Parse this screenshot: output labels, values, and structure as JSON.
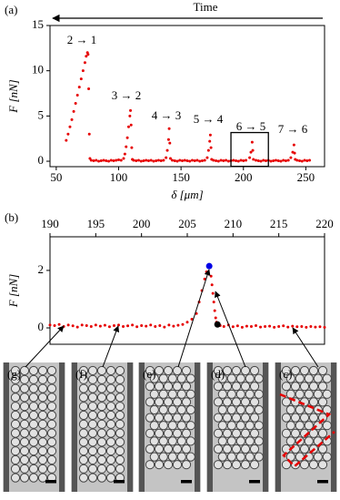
{
  "chart_data": [
    {
      "type": "scatter",
      "label": "(a)",
      "time_label": "Time",
      "xlabel": "δ [μm]",
      "ylabel": "F [nN]",
      "xlim": [
        45,
        265
      ],
      "xticks": [
        50,
        100,
        150,
        200,
        250
      ],
      "ylim": [
        -0.6,
        15
      ],
      "yticks": [
        0,
        5,
        10,
        15
      ],
      "annotations": [
        "2 → 1",
        "3 → 2",
        "4 → 3",
        "5 → 4",
        "6 → 5",
        "7 → 6"
      ],
      "series": [
        {
          "color": "#e60000",
          "x": [
            58,
            59.5,
            61,
            62.5,
            64,
            65.5,
            67,
            68.5,
            70,
            71.5,
            73,
            74,
            75,
            75.5,
            76,
            76.5,
            77,
            78,
            80,
            82,
            84,
            86,
            88,
            90,
            92,
            94,
            96,
            98,
            100,
            102,
            104,
            105,
            106,
            107,
            108,
            109,
            109.5,
            110,
            110.5,
            111,
            112,
            114,
            116,
            118,
            120,
            122,
            124,
            126,
            128,
            130,
            132,
            134,
            136,
            138,
            139,
            140,
            140.5,
            141,
            141.5,
            143,
            145,
            147,
            149,
            151,
            153,
            155,
            157,
            159,
            161,
            163,
            165,
            167,
            169,
            171,
            172,
            173,
            173.5,
            174,
            174.5,
            176,
            178,
            180,
            182,
            184,
            186,
            188,
            190,
            192,
            194,
            196,
            198,
            200,
            202,
            205,
            206,
            207,
            207.5,
            208,
            210,
            212,
            214,
            216,
            218,
            220,
            222,
            224,
            226,
            228,
            230,
            232,
            234,
            236,
            238,
            239.5,
            240.5,
            241,
            241.5,
            243,
            245,
            247,
            249,
            251,
            253
          ],
          "values": [
            2.3,
            3.0,
            3.8,
            4.6,
            5.5,
            6.4,
            7.3,
            8.2,
            9.1,
            10.0,
            10.9,
            11.6,
            12.0,
            11.8,
            8.0,
            3.0,
            0.3,
            0.1,
            0.05,
            0.1,
            0.0,
            0.05,
            0.1,
            0.05,
            0.0,
            0.1,
            0.05,
            0.1,
            0.15,
            0.1,
            0.3,
            0.8,
            1.6,
            2.6,
            3.8,
            5.0,
            5.6,
            4.0,
            1.5,
            0.2,
            0.1,
            0.05,
            0.1,
            0.0,
            0.05,
            0.1,
            0.05,
            0.1,
            0.0,
            0.05,
            0.1,
            0.05,
            0.1,
            0.4,
            1.2,
            2.4,
            3.6,
            2.0,
            0.3,
            0.1,
            0.05,
            0.0,
            0.1,
            0.05,
            0.1,
            0.05,
            0.0,
            0.1,
            0.05,
            0.1,
            0.0,
            0.05,
            0.1,
            0.4,
            1.2,
            2.2,
            2.9,
            1.5,
            0.2,
            0.1,
            0.05,
            0.0,
            0.1,
            0.05,
            0.1,
            0.0,
            0.05,
            0.1,
            0.05,
            0.0,
            0.1,
            0.05,
            0.1,
            0.4,
            1.0,
            2.1,
            1.2,
            0.2,
            0.1,
            0.05,
            0.0,
            0.1,
            0.05,
            0.1,
            0.0,
            0.05,
            0.1,
            0.05,
            0.0,
            0.1,
            0.05,
            0.1,
            0.4,
            1.0,
            1.8,
            0.9,
            0.2,
            0.1,
            0.05,
            0.0,
            0.1,
            0.05,
            0.1
          ]
        }
      ]
    },
    {
      "type": "scatter",
      "label": "(b)",
      "ylabel": "F [nN]",
      "xlim": [
        190,
        220
      ],
      "xticks": [
        190,
        195,
        200,
        205,
        210,
        215,
        220
      ],
      "ylim": [
        -0.57,
        3.17
      ],
      "yticks": [
        0,
        2
      ],
      "series": [
        {
          "color": "#e60000",
          "x": [
            190,
            190.5,
            191,
            191.5,
            192,
            192.5,
            193,
            193.5,
            194,
            194.5,
            195,
            195.5,
            196,
            196.5,
            197,
            197.5,
            198,
            198.5,
            199,
            199.5,
            200,
            200.5,
            201,
            201.5,
            202,
            202.5,
            203,
            203.5,
            204,
            204.5,
            205,
            205.5,
            206,
            206.3,
            206.6,
            206.9,
            207.1,
            207.6,
            207.7,
            207.8,
            207.9,
            208.0,
            208.1,
            208.2,
            208.6,
            209,
            209.5,
            210,
            210.5,
            211,
            211.5,
            212,
            212.5,
            213,
            213.5,
            214,
            214.5,
            215,
            215.5,
            216,
            216.5,
            217,
            217.5,
            218,
            218.5,
            219,
            219.5,
            220
          ],
          "values": [
            0.1,
            0.08,
            0.12,
            0.05,
            0.1,
            0.07,
            0.03,
            0.1,
            0.08,
            0.05,
            0.1,
            0.06,
            0.09,
            0.04,
            0.08,
            0.1,
            0.05,
            0.07,
            0.1,
            0.04,
            0.08,
            0.06,
            0.1,
            0.05,
            0.08,
            0.03,
            0.1,
            0.06,
            0.09,
            0.12,
            0.2,
            0.3,
            0.5,
            0.9,
            1.3,
            1.7,
            1.95,
            1.8,
            1.5,
            1.2,
            0.9,
            0.6,
            0.35,
            0.2,
            0.08,
            0.05,
            0.1,
            0.04,
            0.07,
            0.02,
            0.06,
            0.05,
            0.08,
            0.03,
            0.05,
            0.06,
            0.02,
            0.05,
            0.07,
            0.03,
            0.06,
            0.04,
            0.05,
            0.02,
            0.05,
            0.03,
            0.04,
            0.02
          ]
        },
        {
          "color": "#0000e6",
          "x": [
            207.4
          ],
          "values": [
            2.15
          ]
        },
        {
          "color": "#000000",
          "x": [
            208.3
          ],
          "values": [
            0.12
          ]
        }
      ]
    }
  ],
  "panels": [
    {
      "label": "(g)"
    },
    {
      "label": "(f)"
    },
    {
      "label": "(e)"
    },
    {
      "label": "(d)"
    },
    {
      "label": "(c)"
    }
  ]
}
